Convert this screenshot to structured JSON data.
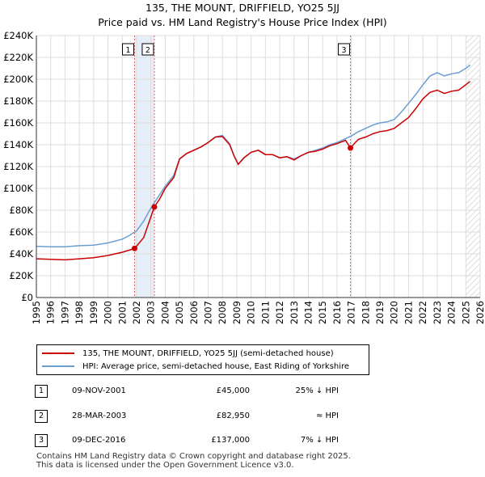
{
  "header": {
    "title": "135, THE MOUNT, DRIFFIELD, YO25 5JJ",
    "subtitle": "Price paid vs. HM Land Registry's House Price Index (HPI)"
  },
  "chart_data": {
    "type": "line",
    "title": "135, THE MOUNT, DRIFFIELD, YO25 5JJ",
    "subtitle": "Price paid vs. HM Land Registry's House Price Index (HPI)",
    "xlim": [
      1995,
      2026
    ],
    "ylim": [
      0,
      240000
    ],
    "x_ticks": [
      1995,
      1996,
      1997,
      1998,
      1999,
      2000,
      2001,
      2002,
      2003,
      2004,
      2005,
      2006,
      2007,
      2008,
      2009,
      2010,
      2011,
      2012,
      2013,
      2014,
      2015,
      2016,
      2017,
      2018,
      2019,
      2020,
      2021,
      2022,
      2023,
      2024,
      2025,
      2026
    ],
    "x_tick_labels": [
      "1995",
      "1996",
      "1997",
      "1998",
      "1999",
      "2000",
      "2001",
      "2002",
      "2003",
      "2004",
      "2005",
      "2006",
      "2007",
      "2008",
      "2009",
      "2010",
      "2011",
      "2012",
      "2013",
      "2014",
      "2015",
      "2016",
      "2017",
      "2018",
      "2019",
      "2020",
      "2021",
      "2022",
      "2023",
      "2024",
      "2025",
      "2026"
    ],
    "y_ticks": [
      0,
      20000,
      40000,
      60000,
      80000,
      100000,
      120000,
      140000,
      160000,
      180000,
      200000,
      220000,
      240000
    ],
    "y_tick_labels": [
      "£0",
      "£20K",
      "£40K",
      "£60K",
      "£80K",
      "£100K",
      "£120K",
      "£140K",
      "£160K",
      "£180K",
      "£200K",
      "£220K",
      "£240K"
    ],
    "grid": true,
    "series": [
      {
        "name": "135, THE MOUNT, DRIFFIELD, YO25 5JJ (semi-detached house)",
        "color": "#cc0000",
        "points": [
          [
            1995.0,
            35500
          ],
          [
            1996.0,
            35000
          ],
          [
            1997.0,
            34500
          ],
          [
            1998.0,
            35500
          ],
          [
            1999.0,
            36500
          ],
          [
            2000.0,
            38500
          ],
          [
            2001.0,
            41500
          ],
          [
            2001.86,
            45000
          ],
          [
            2002.5,
            55000
          ],
          [
            2003.24,
            82950
          ],
          [
            2003.6,
            90000
          ],
          [
            2004.0,
            100000
          ],
          [
            2004.6,
            110000
          ],
          [
            2005.0,
            127000
          ],
          [
            2005.5,
            132000
          ],
          [
            2006.0,
            135000
          ],
          [
            2006.5,
            138000
          ],
          [
            2007.0,
            142000
          ],
          [
            2007.5,
            147000
          ],
          [
            2008.0,
            147500
          ],
          [
            2008.5,
            140000
          ],
          [
            2008.8,
            130000
          ],
          [
            2009.1,
            122000
          ],
          [
            2009.5,
            128000
          ],
          [
            2010.0,
            133000
          ],
          [
            2010.5,
            135000
          ],
          [
            2011.0,
            131000
          ],
          [
            2011.5,
            131000
          ],
          [
            2012.0,
            128000
          ],
          [
            2012.5,
            129000
          ],
          [
            2013.0,
            126000
          ],
          [
            2013.5,
            130000
          ],
          [
            2014.0,
            133000
          ],
          [
            2014.5,
            134000
          ],
          [
            2015.0,
            136000
          ],
          [
            2015.5,
            139000
          ],
          [
            2016.0,
            141000
          ],
          [
            2016.6,
            144000
          ],
          [
            2016.94,
            137000
          ],
          [
            2017.2,
            141000
          ],
          [
            2017.5,
            145000
          ],
          [
            2018.0,
            147000
          ],
          [
            2018.5,
            150000
          ],
          [
            2019.0,
            152000
          ],
          [
            2019.5,
            153000
          ],
          [
            2020.0,
            155000
          ],
          [
            2020.5,
            160000
          ],
          [
            2021.0,
            165000
          ],
          [
            2021.5,
            173000
          ],
          [
            2022.0,
            182000
          ],
          [
            2022.5,
            188000
          ],
          [
            2023.0,
            190000
          ],
          [
            2023.5,
            187000
          ],
          [
            2024.0,
            189000
          ],
          [
            2024.5,
            190000
          ],
          [
            2025.0,
            195000
          ],
          [
            2025.3,
            198000
          ]
        ]
      },
      {
        "name": "HPI: Average price, semi-detached house, East Riding of Yorkshire",
        "color": "#6a9ed2",
        "points": [
          [
            1995.0,
            47000
          ],
          [
            1996.0,
            46500
          ],
          [
            1997.0,
            46500
          ],
          [
            1998.0,
            47500
          ],
          [
            1999.0,
            48000
          ],
          [
            2000.0,
            50000
          ],
          [
            2001.0,
            53500
          ],
          [
            2001.5,
            57000
          ],
          [
            2002.0,
            61000
          ],
          [
            2002.5,
            70000
          ],
          [
            2003.0,
            82000
          ],
          [
            2003.5,
            92000
          ],
          [
            2004.0,
            102000
          ],
          [
            2004.6,
            112000
          ],
          [
            2005.0,
            127000
          ],
          [
            2005.5,
            132000
          ],
          [
            2006.0,
            135000
          ],
          [
            2006.5,
            138000
          ],
          [
            2007.0,
            142000
          ],
          [
            2007.5,
            147000
          ],
          [
            2008.0,
            148500
          ],
          [
            2008.5,
            141000
          ],
          [
            2008.8,
            130000
          ],
          [
            2009.1,
            122000
          ],
          [
            2009.5,
            128000
          ],
          [
            2010.0,
            133000
          ],
          [
            2010.5,
            135000
          ],
          [
            2011.0,
            131000
          ],
          [
            2011.5,
            131000
          ],
          [
            2012.0,
            128000
          ],
          [
            2012.5,
            129000
          ],
          [
            2013.0,
            127000
          ],
          [
            2013.5,
            130000
          ],
          [
            2014.0,
            133000
          ],
          [
            2014.5,
            135000
          ],
          [
            2015.0,
            137000
          ],
          [
            2015.5,
            140000
          ],
          [
            2016.0,
            142000
          ],
          [
            2016.5,
            145000
          ],
          [
            2017.0,
            148000
          ],
          [
            2017.5,
            152000
          ],
          [
            2018.0,
            155000
          ],
          [
            2018.5,
            158000
          ],
          [
            2019.0,
            160000
          ],
          [
            2019.5,
            161000
          ],
          [
            2020.0,
            163000
          ],
          [
            2020.5,
            170000
          ],
          [
            2021.0,
            178000
          ],
          [
            2021.5,
            186000
          ],
          [
            2022.0,
            195000
          ],
          [
            2022.5,
            203000
          ],
          [
            2023.0,
            206000
          ],
          [
            2023.5,
            203000
          ],
          [
            2024.0,
            205000
          ],
          [
            2024.5,
            206000
          ],
          [
            2025.0,
            210000
          ],
          [
            2025.3,
            213000
          ]
        ]
      }
    ],
    "sales": [
      {
        "label": "1",
        "x": 2001.86,
        "price": 45000
      },
      {
        "label": "2",
        "x": 2003.24,
        "price": 82950
      },
      {
        "label": "3",
        "x": 2016.94,
        "price": 137000
      }
    ],
    "shaded_ranges": [
      [
        2001.86,
        2003.24
      ]
    ],
    "hatched_from": 2025.0,
    "hatch_color": "#dddddd"
  },
  "legend": {
    "items": [
      {
        "label": "135, THE MOUNT, DRIFFIELD, YO25 5JJ (semi-detached house)",
        "color": "#cc0000"
      },
      {
        "label": "HPI: Average price, semi-detached house, East Riding of Yorkshire",
        "color": "#6a9ed2"
      }
    ]
  },
  "sales_table": [
    {
      "num": "1",
      "date": "09-NOV-2001",
      "price": "£45,000",
      "relation": "25% ↓ HPI"
    },
    {
      "num": "2",
      "date": "28-MAR-2003",
      "price": "£82,950",
      "relation": "≈ HPI"
    },
    {
      "num": "3",
      "date": "09-DEC-2016",
      "price": "£137,000",
      "relation": "7% ↓ HPI"
    }
  ],
  "footer": {
    "line1": "Contains HM Land Registry data © Crown copyright and database right 2025.",
    "line2": "This data is licensed under the Open Government Licence v3.0."
  }
}
